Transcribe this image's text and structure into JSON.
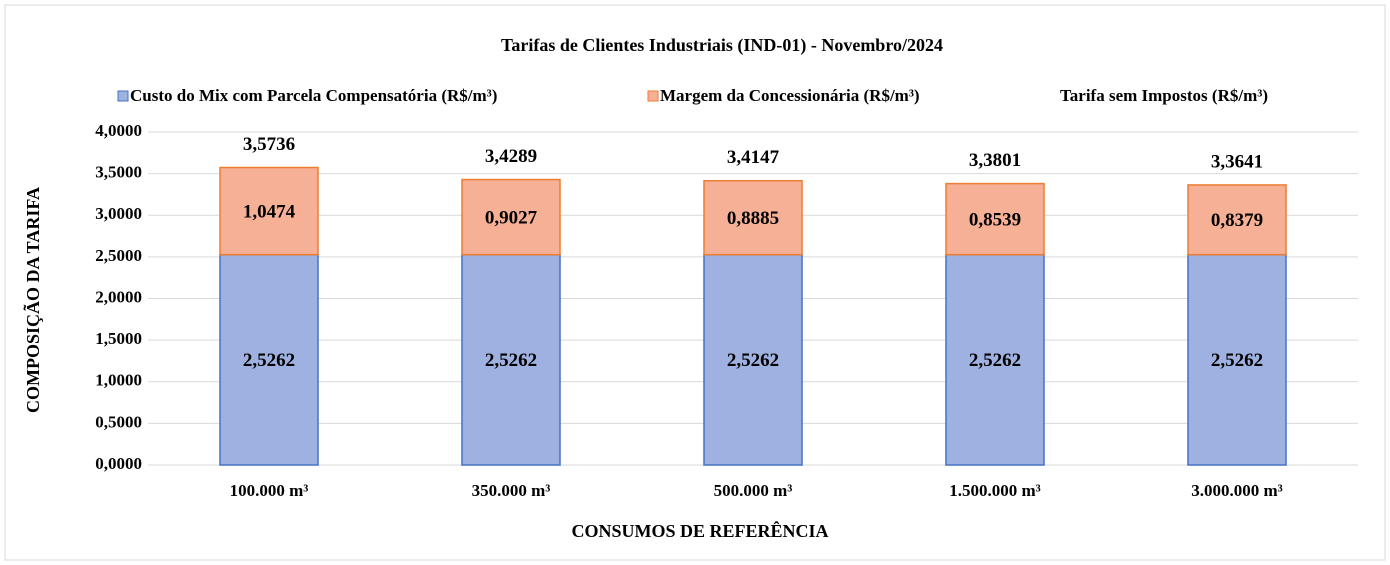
{
  "chart_data": {
    "type": "bar",
    "stacked": true,
    "title": "Tarifas  de  Clientes  Industriais  (IND-01)  - Novembro/2024",
    "xlabel": "CONSUMOS DE REFERÊNCIA",
    "ylabel": "COMPOSIÇÃO DA TARIFA",
    "categories": [
      "100.000 m³",
      "350.000 m³",
      "500.000 m³",
      "1.500.000 m³",
      "3.000.000 m³"
    ],
    "series": [
      {
        "name": "Custo do Mix com Parcela Compensatória (R$/m³)",
        "type": "bar",
        "color": "#9fb1e0",
        "edgecolor": "#4472c4",
        "values": [
          2.5262,
          2.5262,
          2.5262,
          2.5262,
          2.5262
        ],
        "value_labels": [
          "2,5262",
          "2,5262",
          "2,5262",
          "2,5262",
          "2,5262"
        ]
      },
      {
        "name": "Margem da Concessionária (R$/m³)",
        "type": "bar",
        "color": "#f5b096",
        "edgecolor": "#ed7d31",
        "values": [
          1.0474,
          0.9027,
          0.8885,
          0.8539,
          0.8379
        ],
        "value_labels": [
          "1,0474",
          "0,9027",
          "0,8885",
          "0,8539",
          "0,8379"
        ]
      },
      {
        "name": "Tarifa sem Impostos (R$/m³)",
        "type": "line",
        "color": "none",
        "values": [
          3.5736,
          3.4289,
          3.4147,
          3.3801,
          3.3641
        ],
        "value_labels": [
          "3,5736",
          "3,4289",
          "3,4147",
          "3,3801",
          "3,3641"
        ]
      }
    ],
    "ylim": [
      0,
      4
    ],
    "yticks": [
      {
        "value": 0,
        "label": "0,0000"
      },
      {
        "value": 0.5,
        "label": "0,5000"
      },
      {
        "value": 1,
        "label": "1,0000"
      },
      {
        "value": 1.5,
        "label": "1,5000"
      },
      {
        "value": 2,
        "label": "2,0000"
      },
      {
        "value": 2.5,
        "label": "2,5000"
      },
      {
        "value": 3,
        "label": "3,0000"
      },
      {
        "value": 3.5,
        "label": "3,5000"
      },
      {
        "value": 4,
        "label": "4,0000"
      }
    ],
    "grid": true,
    "legend": "top"
  }
}
